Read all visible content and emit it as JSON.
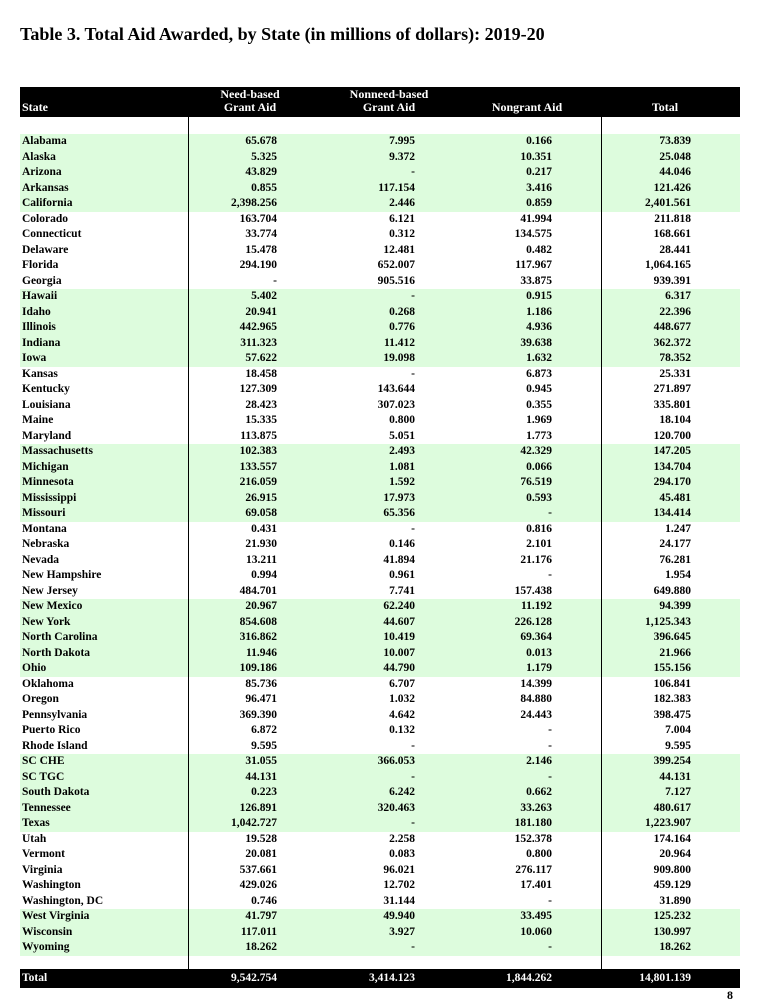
{
  "header": {
    "title": "Table 3.  Total Aid Awarded, by State (in millions of dollars):  2019-20"
  },
  "table": {
    "columns": [
      "State",
      "Need-based\nGrant Aid",
      "Nonneed-based\nGrant Aid",
      "Nongrant Aid",
      "Total"
    ],
    "rows": [
      [
        "Alabama",
        "65.678",
        "7.995",
        "0.166",
        "73.839"
      ],
      [
        "Alaska",
        "5.325",
        "9.372",
        "10.351",
        "25.048"
      ],
      [
        "Arizona",
        "43.829",
        "-",
        "0.217",
        "44.046"
      ],
      [
        "Arkansas",
        "0.855",
        "117.154",
        "3.416",
        "121.426"
      ],
      [
        "California",
        "2,398.256",
        "2.446",
        "0.859",
        "2,401.561"
      ],
      [
        "Colorado",
        "163.704",
        "6.121",
        "41.994",
        "211.818"
      ],
      [
        "Connecticut",
        "33.774",
        "0.312",
        "134.575",
        "168.661"
      ],
      [
        "Delaware",
        "15.478",
        "12.481",
        "0.482",
        "28.441"
      ],
      [
        "Florida",
        "294.190",
        "652.007",
        "117.967",
        "1,064.165"
      ],
      [
        "Georgia",
        "-",
        "905.516",
        "33.875",
        "939.391"
      ],
      [
        "Hawaii",
        "5.402",
        "-",
        "0.915",
        "6.317"
      ],
      [
        "Idaho",
        "20.941",
        "0.268",
        "1.186",
        "22.396"
      ],
      [
        "Illinois",
        "442.965",
        "0.776",
        "4.936",
        "448.677"
      ],
      [
        "Indiana",
        "311.323",
        "11.412",
        "39.638",
        "362.372"
      ],
      [
        "Iowa",
        "57.622",
        "19.098",
        "1.632",
        "78.352"
      ],
      [
        "Kansas",
        "18.458",
        "-",
        "6.873",
        "25.331"
      ],
      [
        "Kentucky",
        "127.309",
        "143.644",
        "0.945",
        "271.897"
      ],
      [
        "Louisiana",
        "28.423",
        "307.023",
        "0.355",
        "335.801"
      ],
      [
        "Maine",
        "15.335",
        "0.800",
        "1.969",
        "18.104"
      ],
      [
        "Maryland",
        "113.875",
        "5.051",
        "1.773",
        "120.700"
      ],
      [
        "Massachusetts",
        "102.383",
        "2.493",
        "42.329",
        "147.205"
      ],
      [
        "Michigan",
        "133.557",
        "1.081",
        "0.066",
        "134.704"
      ],
      [
        "Minnesota",
        "216.059",
        "1.592",
        "76.519",
        "294.170"
      ],
      [
        "Mississippi",
        "26.915",
        "17.973",
        "0.593",
        "45.481"
      ],
      [
        "Missouri",
        "69.058",
        "65.356",
        "-",
        "134.414"
      ],
      [
        "Montana",
        "0.431",
        "-",
        "0.816",
        "1.247"
      ],
      [
        "Nebraska",
        "21.930",
        "0.146",
        "2.101",
        "24.177"
      ],
      [
        "Nevada",
        "13.211",
        "41.894",
        "21.176",
        "76.281"
      ],
      [
        "New Hampshire",
        "0.994",
        "0.961",
        "-",
        "1.954"
      ],
      [
        "New Jersey",
        "484.701",
        "7.741",
        "157.438",
        "649.880"
      ],
      [
        "New Mexico",
        "20.967",
        "62.240",
        "11.192",
        "94.399"
      ],
      [
        "New York",
        "854.608",
        "44.607",
        "226.128",
        "1,125.343"
      ],
      [
        "North Carolina",
        "316.862",
        "10.419",
        "69.364",
        "396.645"
      ],
      [
        "North Dakota",
        "11.946",
        "10.007",
        "0.013",
        "21.966"
      ],
      [
        "Ohio",
        "109.186",
        "44.790",
        "1.179",
        "155.156"
      ],
      [
        "Oklahoma",
        "85.736",
        "6.707",
        "14.399",
        "106.841"
      ],
      [
        "Oregon",
        "96.471",
        "1.032",
        "84.880",
        "182.383"
      ],
      [
        "Pennsylvania",
        "369.390",
        "4.642",
        "24.443",
        "398.475"
      ],
      [
        "Puerto Rico",
        "6.872",
        "0.132",
        "-",
        "7.004"
      ],
      [
        "Rhode Island",
        "9.595",
        "-",
        "-",
        "9.595"
      ],
      [
        "SC CHE",
        "31.055",
        "366.053",
        "2.146",
        "399.254"
      ],
      [
        "SC TGC",
        "44.131",
        "-",
        "-",
        "44.131"
      ],
      [
        "South Dakota",
        "0.223",
        "6.242",
        "0.662",
        "7.127"
      ],
      [
        "Tennessee",
        "126.891",
        "320.463",
        "33.263",
        "480.617"
      ],
      [
        "Texas",
        "1,042.727",
        "-",
        "181.180",
        "1,223.907"
      ],
      [
        "Utah",
        "19.528",
        "2.258",
        "152.378",
        "174.164"
      ],
      [
        "Vermont",
        "20.081",
        "0.083",
        "0.800",
        "20.964"
      ],
      [
        "Virginia",
        "537.661",
        "96.021",
        "276.117",
        "909.800"
      ],
      [
        "Washington",
        "429.026",
        "12.702",
        "17.401",
        "459.129"
      ],
      [
        "Washington, DC",
        "0.746",
        "31.144",
        "-",
        "31.890"
      ],
      [
        "West Virginia",
        "41.797",
        "49.940",
        "33.495",
        "125.232"
      ],
      [
        "Wisconsin",
        "117.011",
        "3.927",
        "10.060",
        "130.997"
      ],
      [
        "Wyoming",
        "18.262",
        "-",
        "-",
        "18.262"
      ]
    ],
    "total": [
      "Total",
      "9,542.754",
      "3,414.123",
      "1,844.262",
      "14,801.139"
    ]
  },
  "page_number": "8"
}
